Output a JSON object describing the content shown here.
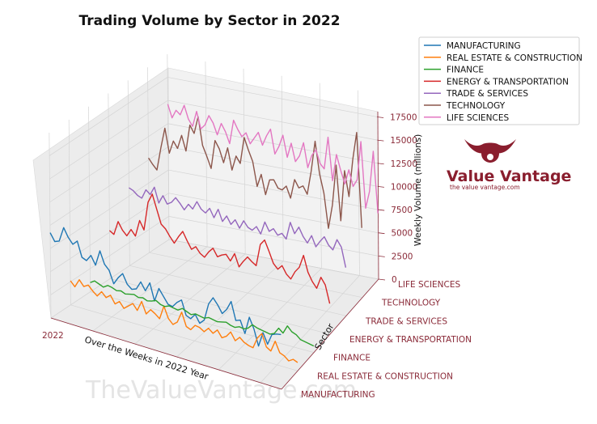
{
  "chart_data": {
    "type": "line",
    "title": "Trading Volume by Sector in 2022",
    "xlabel": "Over the Weeks in 2022 Year",
    "ylabel": "Sector",
    "zlabel": "Weekly Volume (millions)",
    "x_ticks": [
      "2022"
    ],
    "z_ticks": [
      "0",
      "2500",
      "5000",
      "7500",
      "10000",
      "12500",
      "15000",
      "17500"
    ],
    "zlim": [
      0,
      18500
    ],
    "weeks": 52,
    "legend_position": "top-right",
    "grid": true,
    "series": [
      {
        "name": "MANUFACTURING",
        "color": "#1f77b4",
        "values": [
          9200,
          8400,
          8600,
          10200,
          9300,
          8700,
          9200,
          7600,
          7400,
          8100,
          7200,
          8900,
          7600,
          7100,
          5800,
          6600,
          7200,
          6200,
          5800,
          6000,
          6900,
          6100,
          7100,
          5300,
          6800,
          6100,
          5400,
          5300,
          5900,
          6300,
          4800,
          4600,
          5200,
          4400,
          4900,
          6800,
          7600,
          7000,
          6200,
          6800,
          7800,
          5900,
          6100,
          4800,
          6700,
          5600,
          3900,
          5500,
          4400,
          5600,
          5800,
          5900
        ]
      },
      {
        "name": "REAL ESTATE & CONSTRUCTION",
        "color": "#ff7f0e",
        "values": [
          2600,
          2100,
          3000,
          2400,
          2700,
          2200,
          1800,
          2400,
          1900,
          2300,
          1500,
          1900,
          1300,
          1700,
          2100,
          1500,
          2600,
          1400,
          2000,
          1700,
          1300,
          2800,
          1600,
          1100,
          1500,
          2700,
          1300,
          1100,
          1700,
          1600,
          1300,
          1800,
          1400,
          1900,
          1200,
          1500,
          2100,
          1300,
          1800,
          1400,
          1200,
          1100,
          2300,
          2900,
          1600,
          1300,
          2500,
          1400,
          1200,
          800,
          1100,
          900
        ]
      },
      {
        "name": "FINANCE",
        "color": "#2ca02c",
        "values": [
          1000,
          1300,
          1100,
          900,
          1200,
          1100,
          900,
          1000,
          800,
          900,
          1000,
          800,
          900,
          700,
          800,
          1000,
          700,
          600,
          800,
          700,
          600,
          900,
          700,
          500,
          700,
          600,
          500,
          700,
          600,
          500,
          600,
          700,
          500,
          400,
          600,
          500,
          700,
          1200,
          1000,
          900,
          800,
          700,
          900,
          1600,
          1200,
          2100,
          1600,
          1400,
          1000,
          900,
          800,
          700
        ]
      },
      {
        "name": "ENERGY & TRANSPORTATION",
        "color": "#d62728",
        "values": [
          5200,
          4900,
          6400,
          5600,
          5100,
          5900,
          5300,
          7100,
          6200,
          9300,
          10300,
          8800,
          7300,
          6900,
          6200,
          5600,
          6400,
          7100,
          6200,
          5400,
          5800,
          5200,
          4900,
          5600,
          6100,
          5300,
          5600,
          5800,
          5200,
          6100,
          4800,
          5500,
          6100,
          5700,
          5400,
          7800,
          8400,
          7300,
          6100,
          5600,
          6100,
          5300,
          4900,
          5800,
          6400,
          7800,
          6100,
          5200,
          4600,
          5900,
          5200,
          3300
        ]
      },
      {
        "name": "TRADE & SERVICES",
        "color": "#9467bd",
        "values": [
          8400,
          8200,
          7800,
          7600,
          8600,
          8200,
          9100,
          7500,
          8400,
          7600,
          7900,
          8500,
          8000,
          7400,
          8100,
          7700,
          8600,
          7900,
          7600,
          8200,
          7300,
          8300,
          7100,
          7800,
          7000,
          7600,
          6800,
          7700,
          7100,
          6900,
          7400,
          6700,
          8100,
          7200,
          7600,
          7000,
          7300,
          6800,
          8700,
          7600,
          8400,
          7500,
          6900,
          7800,
          6700,
          7400,
          8000,
          7200,
          6800,
          8000,
          7300,
          5200
        ]
      },
      {
        "name": "TECHNOLOGY",
        "color": "#8c564b",
        "values": [
          10200,
          9600,
          9100,
          11600,
          13800,
          11200,
          12600,
          11900,
          13400,
          11800,
          14700,
          13900,
          15800,
          12800,
          11700,
          10500,
          13600,
          12800,
          11400,
          13100,
          10800,
          12400,
          11700,
          14600,
          13300,
          12200,
          9600,
          11000,
          8900,
          10600,
          10700,
          9900,
          9800,
          10300,
          9100,
          11200,
          10400,
          10700,
          9900,
          12500,
          15800,
          12400,
          10400,
          6700,
          9300,
          13700,
          7800,
          13300,
          10600,
          14700,
          17700,
          7500
        ]
      },
      {
        "name": "LIFE SCIENCES",
        "color": "#e377c2",
        "values": [
          14600,
          13200,
          14100,
          13700,
          14800,
          13400,
          12700,
          14400,
          12600,
          13100,
          14200,
          13500,
          12300,
          13600,
          12800,
          11600,
          14200,
          13300,
          12600,
          13100,
          12000,
          12700,
          13400,
          12100,
          13200,
          14000,
          11400,
          12300,
          13600,
          11300,
          12900,
          11000,
          11700,
          13200,
          10600,
          12000,
          12700,
          11300,
          10800,
          14300,
          9700,
          12600,
          11000,
          9600,
          11200,
          9500,
          10300,
          14500,
          7400,
          9300,
          13700,
          7100
        ]
      }
    ]
  },
  "legend": {
    "items": [
      "MANUFACTURING",
      "REAL ESTATE & CONSTRUCTION",
      "FINANCE",
      "ENERGY & TRANSPORTATION",
      "TRADE & SERVICES",
      "TECHNOLOGY",
      "LIFE SCIENCES"
    ]
  },
  "branding": {
    "name": "Value Vantage",
    "tagline": "the value vantage.com",
    "watermark": "TheValueVantage.com",
    "color": "#8a1e2e"
  }
}
